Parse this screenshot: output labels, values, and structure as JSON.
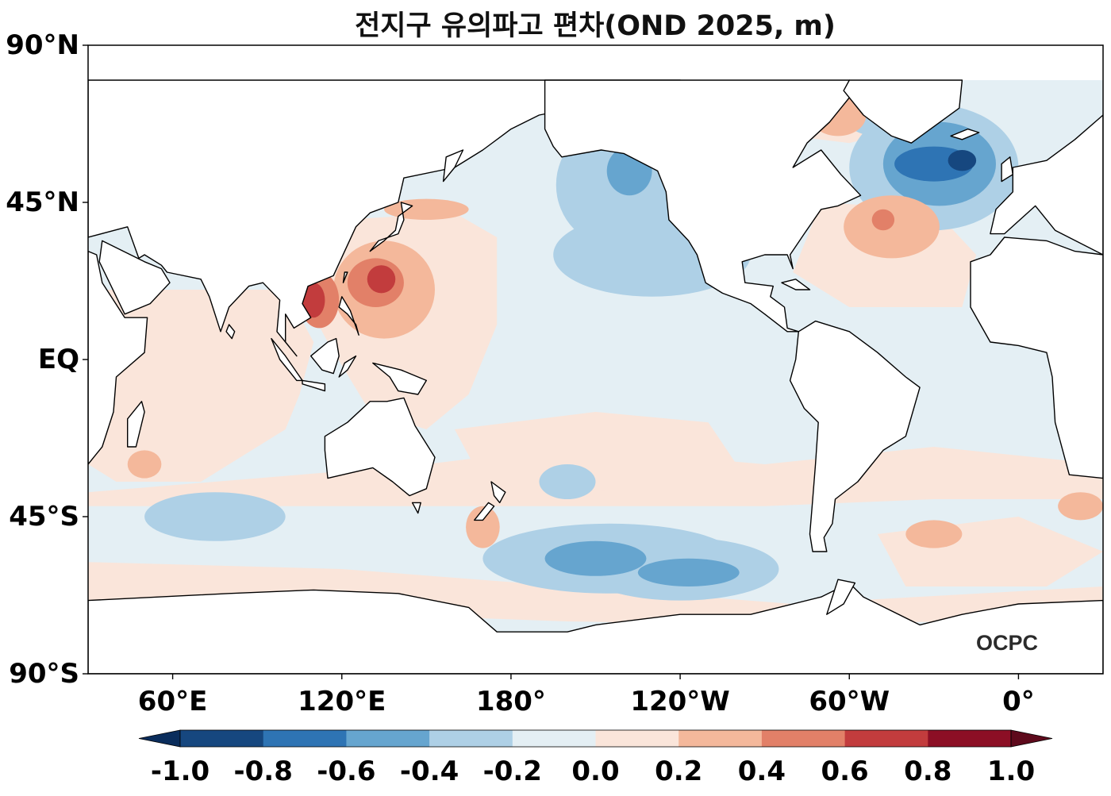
{
  "title": "전지구 유의파고 편차(OND 2025, m)",
  "map": {
    "projection": "PlateCarree, central_longitude 150",
    "lon_range": [
      30,
      390
    ],
    "lat_range": [
      -90,
      90
    ],
    "lat_ticks": [
      {
        "value": 90,
        "label": "90°N"
      },
      {
        "value": 45,
        "label": "45°N"
      },
      {
        "value": 0,
        "label": "EQ"
      },
      {
        "value": -45,
        "label": "45°S"
      },
      {
        "value": -90,
        "label": "90°S"
      }
    ],
    "lon_ticks": [
      {
        "value": 60,
        "label": "60°E"
      },
      {
        "value": 120,
        "label": "120°E"
      },
      {
        "value": 180,
        "label": "180°"
      },
      {
        "value": 240,
        "label": "120°W"
      },
      {
        "value": 300,
        "label": "60°W"
      },
      {
        "value": 360,
        "label": "0°"
      }
    ]
  },
  "colorbar": {
    "levels": [
      "-1.0",
      "-0.8",
      "-0.6",
      "-0.4",
      "-0.2",
      "0.0",
      "0.2",
      "0.4",
      "0.6",
      "0.8",
      "1.0"
    ],
    "colors": [
      "#0a2d5c",
      "#16477f",
      "#2e74b4",
      "#66a5cf",
      "#aed0e6",
      "#e4eff4",
      "#fae5da",
      "#f4b89b",
      "#e28068",
      "#c23c3d",
      "#8c0f25",
      "#5e0a1c"
    ],
    "extend": "both"
  },
  "watermark": "OCPC"
}
